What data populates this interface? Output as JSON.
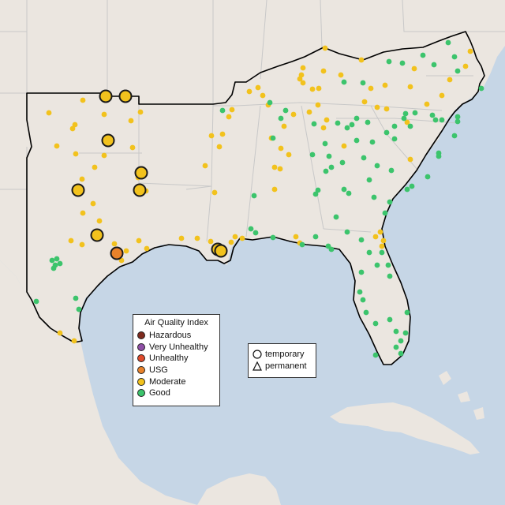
{
  "map": {
    "colors": {
      "land": "#ebe6e0",
      "water": "#c6d6e6",
      "border": "#c8c8c8",
      "outline": "#000000"
    },
    "aqi_categories": [
      {
        "key": "hazardous",
        "label": "Hazardous",
        "color": "#7e2a1e"
      },
      {
        "key": "very_unhealthy",
        "label": "Very Unhealthy",
        "color": "#8f4fa6"
      },
      {
        "key": "unhealthy",
        "label": "Unhealthy",
        "color": "#e04b2c"
      },
      {
        "key": "usg",
        "label": "USG",
        "color": "#e9822a"
      },
      {
        "key": "moderate",
        "label": "Moderate",
        "color": "#f2c21d"
      },
      {
        "key": "good",
        "label": "Good",
        "color": "#3cc46c"
      }
    ],
    "monitor_types": [
      {
        "key": "temporary",
        "label": "temporary",
        "icon": "circle-icon"
      },
      {
        "key": "permanent",
        "label": "permanent",
        "icon": "triangle-icon"
      }
    ]
  },
  "legend": {
    "aqi_title": "Air Quality Index"
  }
}
